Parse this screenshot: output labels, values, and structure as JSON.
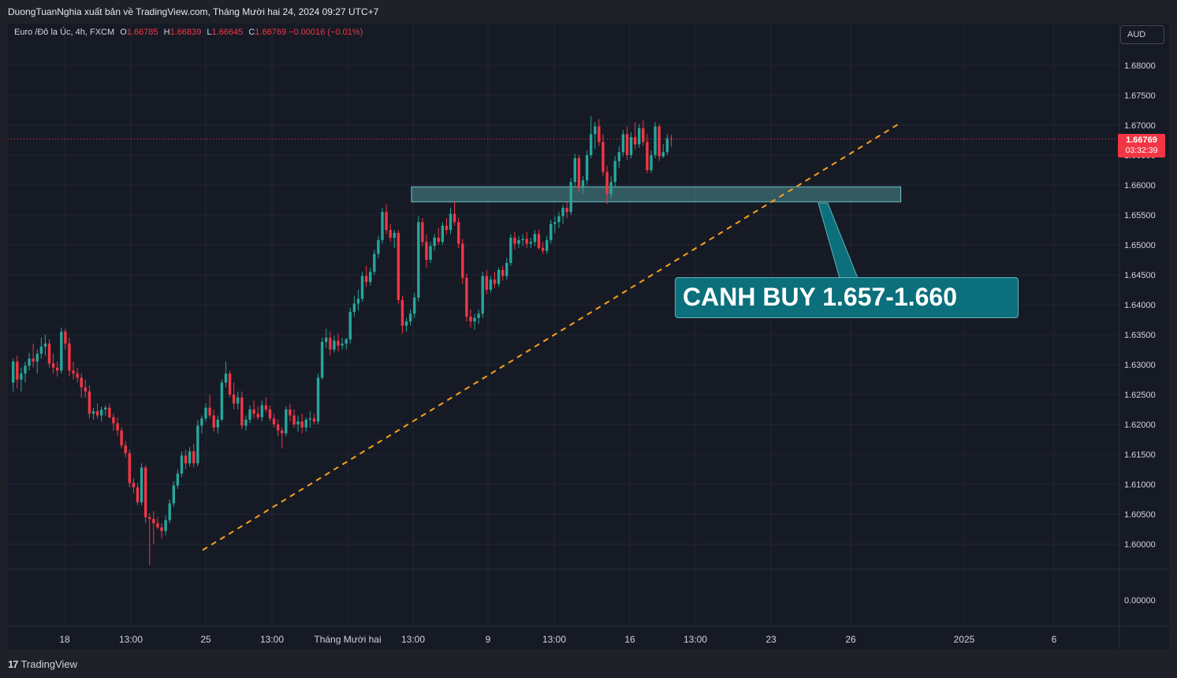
{
  "header": {
    "publish_text": "DuongTuanNghia xuất bản về TradingView.com, Tháng Mười hai 24, 2024 09:27 UTC+7"
  },
  "legend": {
    "symbol": "Euro /Đô la Úc, 4h, FXCM",
    "open_label": "O",
    "open": "1.66785",
    "high_label": "H",
    "high": "1.66839",
    "low_label": "L",
    "low": "1.66645",
    "close_label": "C",
    "close": "1.66769",
    "change": "−0.00016 (−0.01%)"
  },
  "currency_button": "AUD",
  "last_price": {
    "price": "1.66769",
    "countdown": "03:32:39"
  },
  "annotation": {
    "text": "CANH BUY 1.657-1.660"
  },
  "footer": {
    "brand": "TradingView",
    "logo": "tradingview-logo-icon"
  },
  "colors": {
    "up": "#26a69a",
    "down": "#f23645",
    "trendline": "#f7a21b",
    "zone_fill": "#4f8f94",
    "callout": "#0b6f7c",
    "background": "#161a25"
  },
  "chart_data": {
    "type": "candlestick",
    "instrument": "Euro /Đô la Úc, 4h, FXCM",
    "price_axis_ticks": [
      "1.68000",
      "1.67500",
      "1.67000",
      "1.66500",
      "1.66000",
      "1.65500",
      "1.65000",
      "1.64500",
      "1.64000",
      "1.63500",
      "1.63000",
      "1.62500",
      "1.62000",
      "1.61500",
      "1.61000",
      "1.60500",
      "1.60000"
    ],
    "volume_axis_label": "0.00000",
    "time_axis_ticks": [
      "18",
      "13:00",
      "25",
      "13:00",
      "Tháng Mười hai",
      "13:00",
      "9",
      "13:00",
      "16",
      "13:00",
      "23",
      "26",
      "2025",
      "6"
    ],
    "ylim": [
      1.5965,
      1.6835
    ],
    "grid": true,
    "last_price_line": 1.66769,
    "candles": [
      [
        1.627,
        1.631,
        1.6255,
        1.6305
      ],
      [
        1.6305,
        1.6315,
        1.626,
        1.6275
      ],
      [
        1.6275,
        1.6295,
        1.6255,
        1.6285
      ],
      [
        1.6285,
        1.6305,
        1.627,
        1.6298
      ],
      [
        1.6298,
        1.632,
        1.629,
        1.631
      ],
      [
        1.631,
        1.6335,
        1.6295,
        1.6305
      ],
      [
        1.6305,
        1.6325,
        1.6285,
        1.6318
      ],
      [
        1.6318,
        1.6345,
        1.631,
        1.633
      ],
      [
        1.633,
        1.635,
        1.6315,
        1.6335
      ],
      [
        1.6335,
        1.6342,
        1.6295,
        1.6302
      ],
      [
        1.6302,
        1.6318,
        1.6285,
        1.6295
      ],
      [
        1.6295,
        1.6305,
        1.628,
        1.629
      ],
      [
        1.629,
        1.6362,
        1.6285,
        1.6355
      ],
      [
        1.6355,
        1.636,
        1.6325,
        1.6335
      ],
      [
        1.6335,
        1.6345,
        1.628,
        1.629
      ],
      [
        1.629,
        1.6305,
        1.6275,
        1.6285
      ],
      [
        1.6285,
        1.6295,
        1.627,
        1.6278
      ],
      [
        1.6278,
        1.6285,
        1.6245,
        1.6262
      ],
      [
        1.6262,
        1.6275,
        1.6245,
        1.6255
      ],
      [
        1.6255,
        1.6265,
        1.621,
        1.6218
      ],
      [
        1.6218,
        1.6228,
        1.6208,
        1.6222
      ],
      [
        1.6222,
        1.6235,
        1.621,
        1.6215
      ],
      [
        1.6215,
        1.623,
        1.6205,
        1.6225
      ],
      [
        1.6225,
        1.6232,
        1.6215,
        1.6228
      ],
      [
        1.6228,
        1.6235,
        1.621,
        1.6212
      ],
      [
        1.6212,
        1.6218,
        1.619,
        1.6202
      ],
      [
        1.6202,
        1.6212,
        1.618,
        1.619
      ],
      [
        1.619,
        1.6195,
        1.616,
        1.6165
      ],
      [
        1.6165,
        1.6172,
        1.6145,
        1.6152
      ],
      [
        1.6152,
        1.6158,
        1.6095,
        1.6102
      ],
      [
        1.6102,
        1.611,
        1.6085,
        1.6095
      ],
      [
        1.6095,
        1.6102,
        1.6065,
        1.607
      ],
      [
        1.607,
        1.6135,
        1.6065,
        1.6128
      ],
      [
        1.6128,
        1.6132,
        1.6035,
        1.6045
      ],
      [
        1.6045,
        1.6052,
        1.5965,
        1.6042
      ],
      [
        1.6042,
        1.6055,
        1.6,
        1.6035
      ],
      [
        1.6035,
        1.6045,
        1.6025,
        1.6028
      ],
      [
        1.6028,
        1.6035,
        1.601,
        1.6022
      ],
      [
        1.6022,
        1.6048,
        1.6015,
        1.604
      ],
      [
        1.604,
        1.6075,
        1.6035,
        1.6068
      ],
      [
        1.6068,
        1.6105,
        1.6062,
        1.6098
      ],
      [
        1.6098,
        1.6125,
        1.6092,
        1.6118
      ],
      [
        1.6118,
        1.6155,
        1.6112,
        1.6148
      ],
      [
        1.6148,
        1.6158,
        1.6125,
        1.6135
      ],
      [
        1.6135,
        1.6162,
        1.613,
        1.6155
      ],
      [
        1.6155,
        1.6168,
        1.6128,
        1.6135
      ],
      [
        1.6135,
        1.6208,
        1.613,
        1.6198
      ],
      [
        1.6198,
        1.6215,
        1.6185,
        1.621
      ],
      [
        1.621,
        1.6235,
        1.6205,
        1.6228
      ],
      [
        1.6228,
        1.625,
        1.621,
        1.6215
      ],
      [
        1.6215,
        1.6225,
        1.6188,
        1.6195
      ],
      [
        1.6195,
        1.6215,
        1.6185,
        1.6208
      ],
      [
        1.6208,
        1.6275,
        1.6205,
        1.627
      ],
      [
        1.627,
        1.6305,
        1.6262,
        1.6285
      ],
      [
        1.6285,
        1.629,
        1.6245,
        1.625
      ],
      [
        1.625,
        1.627,
        1.6225,
        1.6235
      ],
      [
        1.6235,
        1.6255,
        1.6225,
        1.6245
      ],
      [
        1.6245,
        1.6255,
        1.6192,
        1.6198
      ],
      [
        1.6198,
        1.6215,
        1.619,
        1.6208
      ],
      [
        1.6208,
        1.6232,
        1.6202,
        1.6225
      ],
      [
        1.6225,
        1.624,
        1.621,
        1.6218
      ],
      [
        1.6218,
        1.623,
        1.6208,
        1.6212
      ],
      [
        1.6212,
        1.624,
        1.6205,
        1.6232
      ],
      [
        1.6232,
        1.6245,
        1.622,
        1.6225
      ],
      [
        1.6225,
        1.6232,
        1.6205,
        1.621
      ],
      [
        1.621,
        1.6218,
        1.6195,
        1.62
      ],
      [
        1.62,
        1.6208,
        1.618,
        1.619
      ],
      [
        1.619,
        1.6195,
        1.616,
        1.6185
      ],
      [
        1.6185,
        1.623,
        1.618,
        1.6225
      ],
      [
        1.6225,
        1.6235,
        1.6205,
        1.6215
      ],
      [
        1.6215,
        1.6225,
        1.6195,
        1.62
      ],
      [
        1.62,
        1.6215,
        1.6188,
        1.6205
      ],
      [
        1.6205,
        1.6218,
        1.6185,
        1.6195
      ],
      [
        1.6195,
        1.6212,
        1.6188,
        1.6208
      ],
      [
        1.6208,
        1.6222,
        1.6195,
        1.621
      ],
      [
        1.621,
        1.6218,
        1.62,
        1.6205
      ],
      [
        1.6205,
        1.6285,
        1.62,
        1.6278
      ],
      [
        1.6278,
        1.6345,
        1.6275,
        1.6338
      ],
      [
        1.6338,
        1.636,
        1.6328,
        1.6345
      ],
      [
        1.6345,
        1.6355,
        1.6315,
        1.6325
      ],
      [
        1.6325,
        1.6348,
        1.632,
        1.634
      ],
      [
        1.634,
        1.6352,
        1.6322,
        1.6332
      ],
      [
        1.6332,
        1.6345,
        1.6325,
        1.6335
      ],
      [
        1.6335,
        1.6345,
        1.6325,
        1.6342
      ],
      [
        1.6342,
        1.6395,
        1.6335,
        1.6388
      ],
      [
        1.6388,
        1.6415,
        1.638,
        1.6402
      ],
      [
        1.6402,
        1.6425,
        1.639,
        1.641
      ],
      [
        1.641,
        1.6455,
        1.6405,
        1.6448
      ],
      [
        1.6448,
        1.6465,
        1.643,
        1.6438
      ],
      [
        1.6438,
        1.6462,
        1.6432,
        1.6455
      ],
      [
        1.6455,
        1.6492,
        1.645,
        1.6485
      ],
      [
        1.6485,
        1.6515,
        1.6478,
        1.6508
      ],
      [
        1.6508,
        1.6562,
        1.6502,
        1.6555
      ],
      [
        1.6555,
        1.6568,
        1.6518,
        1.6525
      ],
      [
        1.6525,
        1.6535,
        1.6505,
        1.6512
      ],
      [
        1.6512,
        1.6525,
        1.6495,
        1.652
      ],
      [
        1.652,
        1.6525,
        1.6402,
        1.6408
      ],
      [
        1.6408,
        1.6415,
        1.6352,
        1.6365
      ],
      [
        1.6365,
        1.6378,
        1.6355,
        1.6372
      ],
      [
        1.6372,
        1.6392,
        1.6365,
        1.6385
      ],
      [
        1.6385,
        1.642,
        1.6378,
        1.6412
      ],
      [
        1.6412,
        1.6548,
        1.6405,
        1.6538
      ],
      [
        1.6538,
        1.6545,
        1.6498,
        1.6505
      ],
      [
        1.6505,
        1.6518,
        1.6462,
        1.6475
      ],
      [
        1.6475,
        1.6505,
        1.647,
        1.6498
      ],
      [
        1.6498,
        1.6518,
        1.649,
        1.6512
      ],
      [
        1.6512,
        1.6528,
        1.65,
        1.6505
      ],
      [
        1.6505,
        1.6538,
        1.65,
        1.6532
      ],
      [
        1.6532,
        1.6545,
        1.6518,
        1.6525
      ],
      [
        1.6525,
        1.6562,
        1.6518,
        1.6552
      ],
      [
        1.6552,
        1.6572,
        1.6532,
        1.6538
      ],
      [
        1.6538,
        1.6545,
        1.6495,
        1.6502
      ],
      [
        1.6502,
        1.651,
        1.6435,
        1.6445
      ],
      [
        1.6445,
        1.6452,
        1.6372,
        1.638
      ],
      [
        1.638,
        1.6392,
        1.6362,
        1.6372
      ],
      [
        1.6372,
        1.6385,
        1.6358,
        1.6378
      ],
      [
        1.6378,
        1.6392,
        1.6368,
        1.6385
      ],
      [
        1.6385,
        1.6455,
        1.6378,
        1.6448
      ],
      [
        1.6448,
        1.6458,
        1.6418,
        1.6425
      ],
      [
        1.6425,
        1.6448,
        1.642,
        1.6442
      ],
      [
        1.6442,
        1.6455,
        1.6428,
        1.6435
      ],
      [
        1.6435,
        1.6462,
        1.643,
        1.6458
      ],
      [
        1.6458,
        1.6465,
        1.644,
        1.6448
      ],
      [
        1.6448,
        1.6478,
        1.6442,
        1.647
      ],
      [
        1.647,
        1.6518,
        1.6465,
        1.6512
      ],
      [
        1.6512,
        1.6522,
        1.6492,
        1.6502
      ],
      [
        1.6502,
        1.6515,
        1.6495,
        1.6508
      ],
      [
        1.6508,
        1.6518,
        1.6498,
        1.651
      ],
      [
        1.651,
        1.6522,
        1.6495,
        1.6502
      ],
      [
        1.6502,
        1.6512,
        1.6495,
        1.6505
      ],
      [
        1.6505,
        1.6525,
        1.6498,
        1.6518
      ],
      [
        1.6518,
        1.6525,
        1.6492,
        1.6495
      ],
      [
        1.6495,
        1.6505,
        1.6485,
        1.649
      ],
      [
        1.649,
        1.6515,
        1.6485,
        1.6508
      ],
      [
        1.6508,
        1.6542,
        1.6502,
        1.6535
      ],
      [
        1.6535,
        1.6548,
        1.652,
        1.6538
      ],
      [
        1.6538,
        1.6555,
        1.6528,
        1.6548
      ],
      [
        1.6548,
        1.6568,
        1.6535,
        1.6562
      ],
      [
        1.6562,
        1.6572,
        1.6545,
        1.6555
      ],
      [
        1.6555,
        1.6612,
        1.655,
        1.6605
      ],
      [
        1.6605,
        1.6652,
        1.6598,
        1.6645
      ],
      [
        1.6645,
        1.665,
        1.6588,
        1.6595
      ],
      [
        1.6595,
        1.6615,
        1.6585,
        1.6608
      ],
      [
        1.6608,
        1.6658,
        1.66,
        1.665
      ],
      [
        1.665,
        1.6715,
        1.6645,
        1.6685
      ],
      [
        1.6685,
        1.6705,
        1.666,
        1.6698
      ],
      [
        1.6698,
        1.671,
        1.6665,
        1.6672
      ],
      [
        1.6672,
        1.6685,
        1.6615,
        1.6622
      ],
      [
        1.6622,
        1.6632,
        1.6568,
        1.6585
      ],
      [
        1.6585,
        1.6615,
        1.6578,
        1.6605
      ],
      [
        1.6605,
        1.6648,
        1.6598,
        1.664
      ],
      [
        1.664,
        1.6665,
        1.6628,
        1.6655
      ],
      [
        1.6655,
        1.6692,
        1.6648,
        1.6685
      ],
      [
        1.6685,
        1.6698,
        1.6642,
        1.665
      ],
      [
        1.665,
        1.6688,
        1.6645,
        1.668
      ],
      [
        1.668,
        1.6705,
        1.666,
        1.6668
      ],
      [
        1.6668,
        1.6702,
        1.6662,
        1.6695
      ],
      [
        1.6695,
        1.6708,
        1.6665,
        1.6672
      ],
      [
        1.6672,
        1.6685,
        1.662,
        1.6625
      ],
      [
        1.6625,
        1.6658,
        1.662,
        1.665
      ],
      [
        1.665,
        1.6705,
        1.6645,
        1.6698
      ],
      [
        1.6698,
        1.6702,
        1.664,
        1.6648
      ],
      [
        1.6648,
        1.6668,
        1.6645,
        1.6655
      ],
      [
        1.6655,
        1.6685,
        1.665,
        1.6678
      ],
      [
        1.6678,
        1.6684,
        1.6664,
        1.6677
      ]
    ],
    "annotations": [
      {
        "type": "dashed-trendline",
        "from": [
          37,
          1.599
        ],
        "to": [
          196,
          1.666
        ]
      },
      {
        "type": "rectangle-zone",
        "from_bar": 99,
        "to_bar": 196,
        "top": 1.6597,
        "bottom": 1.6572
      },
      {
        "type": "callout",
        "text": "CANH BUY 1.657-1.660"
      }
    ]
  }
}
